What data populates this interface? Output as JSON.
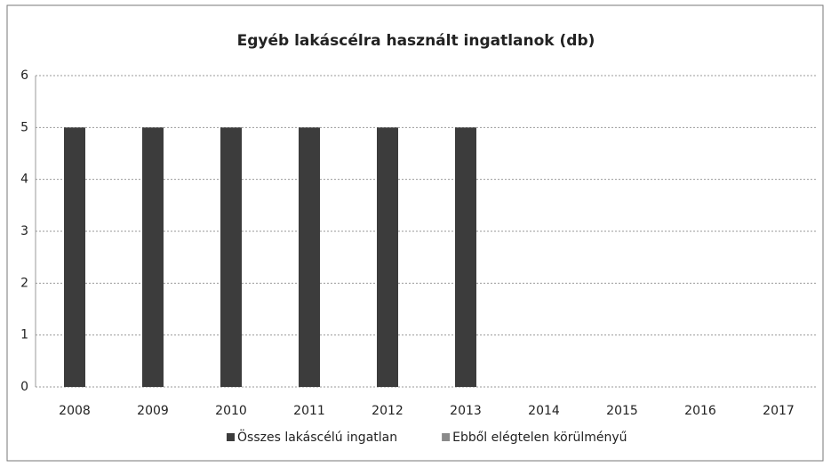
{
  "chart_data": {
    "type": "bar",
    "title": "Egyéb lakáscélra használt ingatlanok (db)",
    "categories": [
      "2008",
      "2009",
      "2010",
      "2011",
      "2012",
      "2013",
      "2014",
      "2015",
      "2016",
      "2017"
    ],
    "series": [
      {
        "name": "Összes lakáscélú ingatlan",
        "color": "#3c3c3c",
        "values": [
          5,
          5,
          5,
          5,
          5,
          5,
          null,
          null,
          null,
          null
        ]
      },
      {
        "name": "Ebből elégtelen körülményű",
        "color": "#8a8a8a",
        "values": [
          null,
          null,
          null,
          null,
          null,
          null,
          null,
          null,
          null,
          null
        ]
      }
    ],
    "ylim": [
      0,
      6
    ],
    "yticks": [
      0,
      1,
      2,
      3,
      4,
      5,
      6
    ],
    "grid": true,
    "legend": "bottom"
  }
}
